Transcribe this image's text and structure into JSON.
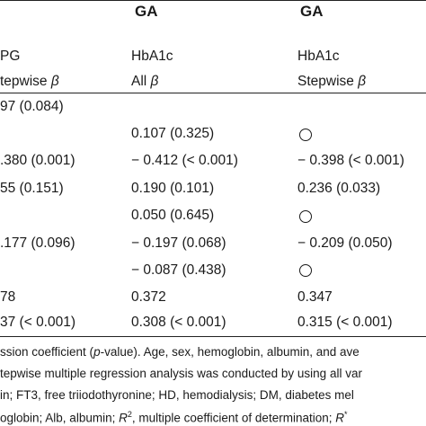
{
  "header": {
    "col_ga_1": "GA",
    "col_ga_2": "GA"
  },
  "subheader": {
    "col0_line1": "PG",
    "col0_line2": "tepwise β",
    "col1_line1": "HbA1c",
    "col1_line2": "All β",
    "col2_line1": "HbA1c",
    "col2_line2": "Stepwise β"
  },
  "rows": [
    {
      "c0": "97 (0.084)",
      "c1": "",
      "c2": ""
    },
    {
      "c0": "",
      "c1": "0.107 (0.325)",
      "c2": "○"
    },
    {
      "c0": ".380 (0.001)",
      "c1": "− 0.412 (< 0.001)",
      "c2": "− 0.398 (< 0.001)"
    },
    {
      "c0": "55 (0.151)",
      "c1": "0.190 (0.101)",
      "c2": "0.236 (0.033)"
    },
    {
      "c0": "",
      "c1": "0.050 (0.645)",
      "c2": "○"
    },
    {
      "c0": ".177 (0.096)",
      "c1": "− 0.197 (0.068)",
      "c2": "− 0.209 (0.050)"
    },
    {
      "c0": "",
      "c1": "− 0.087 (0.438)",
      "c2": "○"
    },
    {
      "c0": "78",
      "c1": "0.372",
      "c2": "0.347"
    },
    {
      "c0": "37 (< 0.001)",
      "c1": "0.308 (< 0.001)",
      "c2": "0.315 (< 0.001)"
    }
  ],
  "footnotes": {
    "line1_a": "ssion coefficient (",
    "line1_p": "p",
    "line1_b": "-value). Age, sex, hemoglobin, albumin, and ave",
    "line2": "tepwise multiple regression analysis was conducted by using all var",
    "line3": "in; FT3, free triiodothyronine; HD, hemodialysis; DM, diabetes mel",
    "line4_a": "oglobin; Alb, albumin; ",
    "line4_r": "R",
    "line4_sup": "2",
    "line4_b": ", multiple coefficient of determination; ",
    "line4_r2": "R",
    "line4_sup2": "*"
  }
}
